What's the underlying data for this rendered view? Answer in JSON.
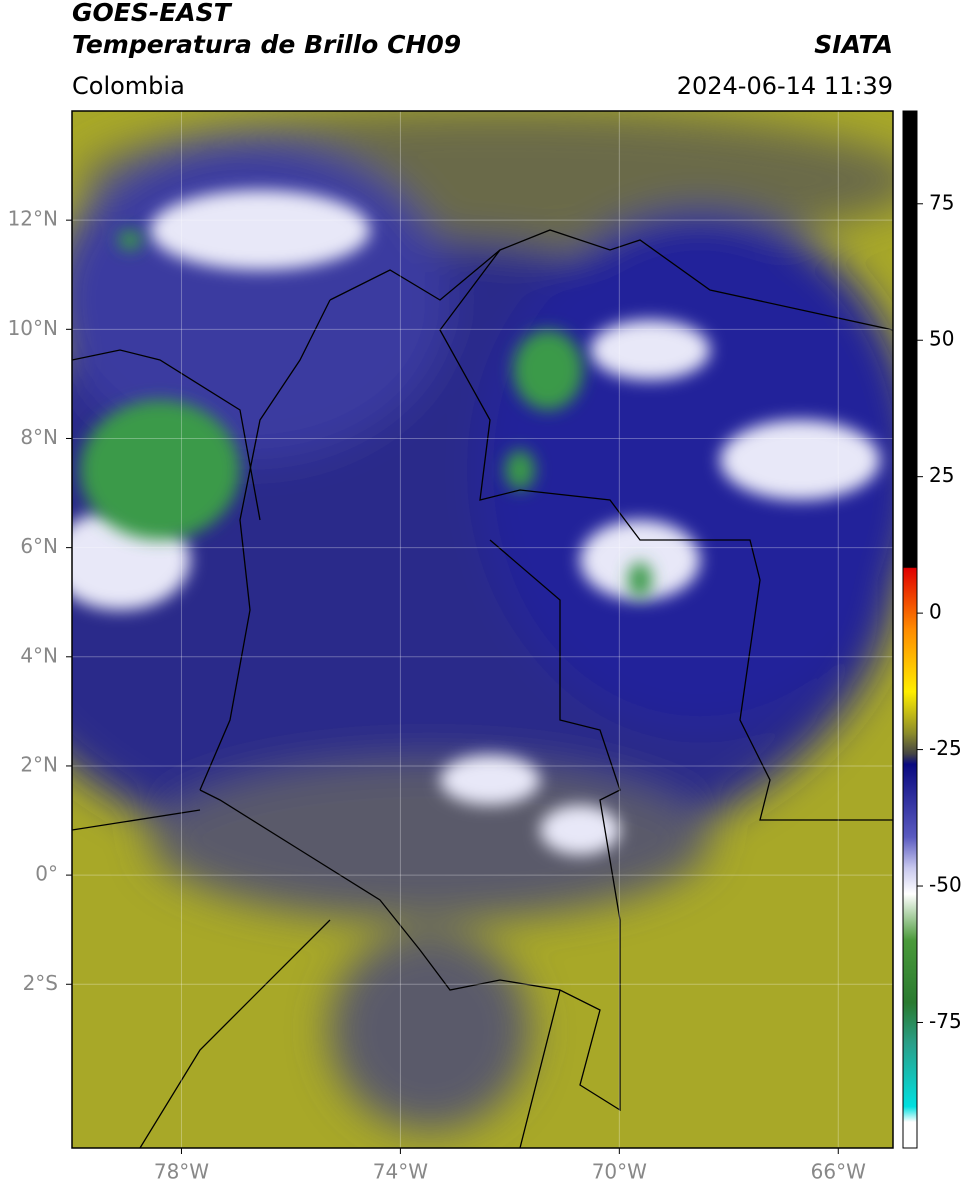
{
  "header": {
    "title": "GOES-EAST",
    "subtitle": "Temperatura de Brillo CH09",
    "source": "SIATA",
    "region": "Colombia",
    "datetime": "2024-06-14 11:39"
  },
  "map": {
    "xlim": [
      -80,
      -65
    ],
    "ylim": [
      -5,
      14
    ],
    "xticks": [
      {
        "value": -78,
        "label": "78°W"
      },
      {
        "value": -74,
        "label": "74°W"
      },
      {
        "value": -70,
        "label": "70°W"
      },
      {
        "value": -66,
        "label": "66°W"
      }
    ],
    "yticks": [
      {
        "value": 12,
        "label": "12°N"
      },
      {
        "value": 10,
        "label": "10°N"
      },
      {
        "value": 8,
        "label": "8°N"
      },
      {
        "value": 6,
        "label": "6°N"
      },
      {
        "value": 4,
        "label": "4°N"
      },
      {
        "value": 2,
        "label": "2°N"
      },
      {
        "value": 0,
        "label": "0°"
      },
      {
        "value": -2,
        "label": "2°S"
      }
    ],
    "grid": true
  },
  "colorbar": {
    "lim": [
      -98,
      92
    ],
    "ticks": [
      75,
      50,
      25,
      0,
      -25,
      -50,
      -75
    ]
  }
}
